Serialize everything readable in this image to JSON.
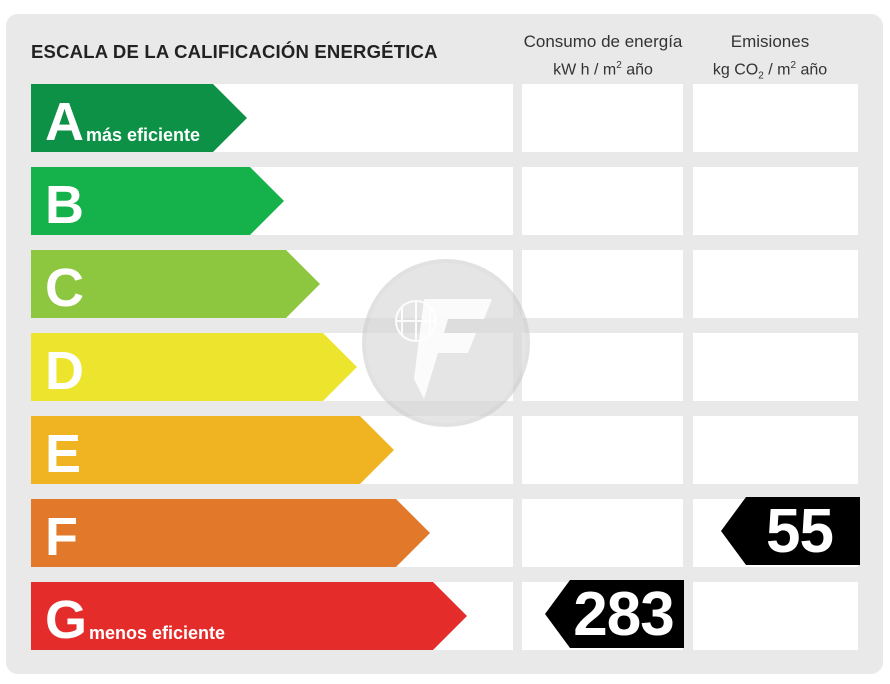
{
  "title": "ESCALA DE LA CALIFICACIÓN ENERGÉTICA",
  "columns": {
    "consumption": {
      "label": "Consumo de energía",
      "unit_pre": "kW h  / m",
      "unit_sup": "2",
      "unit_post": " año"
    },
    "emissions": {
      "label": "Emisiones",
      "unit_pre": "kg CO",
      "unit_sub": "2",
      "unit_mid": "  / m",
      "unit_sup": "2",
      "unit_post": " año"
    }
  },
  "ratings": [
    {
      "letter": "A",
      "desc": "más eficiente",
      "color": "#0c9146"
    },
    {
      "letter": "B",
      "desc": "",
      "color": "#15b24b"
    },
    {
      "letter": "C",
      "desc": "",
      "color": "#8dc63f"
    },
    {
      "letter": "D",
      "desc": "",
      "color": "#ede52d"
    },
    {
      "letter": "E",
      "desc": "",
      "color": "#f0b321"
    },
    {
      "letter": "F",
      "desc": "",
      "color": "#e2792a"
    },
    {
      "letter": "G",
      "desc": "menos eficiente",
      "color": "#e42c2b"
    }
  ],
  "values": {
    "consumption": {
      "rating": "G",
      "value": "283"
    },
    "emissions": {
      "rating": "F",
      "value": "55"
    }
  }
}
